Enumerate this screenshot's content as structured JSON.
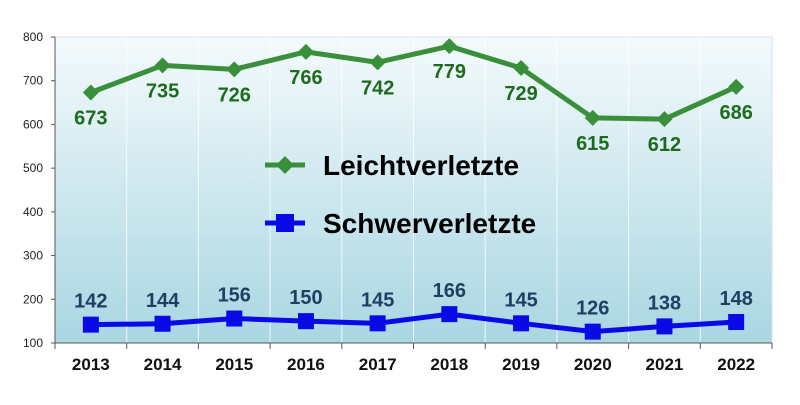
{
  "chart_data": {
    "type": "line",
    "categories": [
      "2013",
      "2014",
      "2015",
      "2016",
      "2017",
      "2018",
      "2019",
      "2020",
      "2021",
      "2022"
    ],
    "series": [
      {
        "name": "Leichtverletzte",
        "color": "#3a8f3a",
        "label_color": "#1e6b1e",
        "marker": "diamond",
        "values": [
          673,
          735,
          726,
          766,
          742,
          779,
          729,
          615,
          612,
          686
        ]
      },
      {
        "name": "Schwerverletzte",
        "color": "#0a0ae6",
        "label_color": "#1f3f63",
        "marker": "square",
        "values": [
          142,
          144,
          156,
          150,
          145,
          166,
          145,
          126,
          138,
          148
        ]
      }
    ],
    "ylim": [
      100,
      800
    ],
    "yticks": [
      100,
      200,
      300,
      400,
      500,
      600,
      700,
      800
    ],
    "legend": "center",
    "grid": "vertical",
    "background": "gradient white to light blue"
  }
}
